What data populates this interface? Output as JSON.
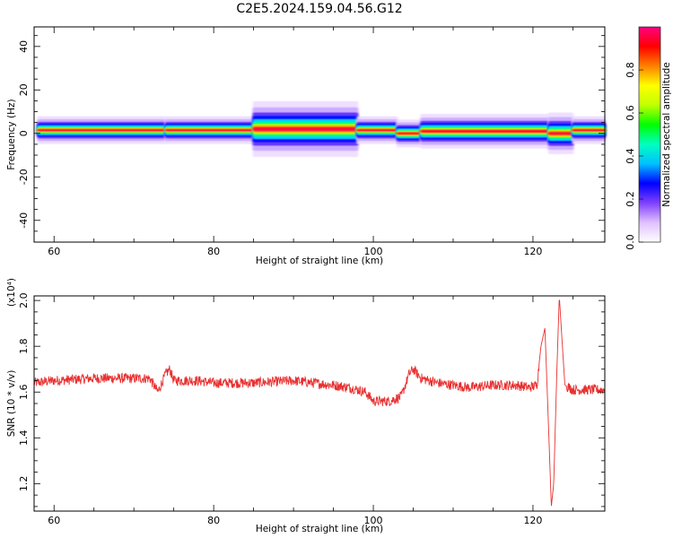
{
  "title": "C2E5.2024.159.04.56.G12",
  "chart_data": [
    {
      "type": "heatmap",
      "xlabel": "Height of straight line (km)",
      "ylabel": "Frequency (Hz)",
      "xlim": [
        57.5,
        129
      ],
      "ylim": [
        -50,
        49
      ],
      "xticks": [
        60,
        80,
        100,
        120
      ],
      "yticks": [
        -40,
        -20,
        0,
        20,
        40
      ],
      "colorbar": {
        "label": "Normalized spectral amplitude",
        "ticks": [
          "0.0",
          "0.2",
          "0.4",
          "0.6",
          "0.8"
        ],
        "range": [
          0,
          1
        ],
        "colors": [
          "#ffffff",
          "#e0c0ff",
          "#8040ff",
          "#0000ff",
          "#00c0ff",
          "#00ffc0",
          "#00ff00",
          "#c0ff00",
          "#ffff00",
          "#ff8000",
          "#ff0000",
          "#ff0080"
        ]
      },
      "band": {
        "segments": [
          {
            "x0": 58,
            "x1": 74,
            "center": 1.5,
            "halfwidth": 2
          },
          {
            "x0": 74,
            "x1": 85,
            "center": 1.5,
            "halfwidth": 2
          },
          {
            "x0": 85,
            "x1": 98,
            "center": 2,
            "halfwidth": 4
          },
          {
            "x0": 98,
            "x1": 103,
            "center": 1.5,
            "halfwidth": 2
          },
          {
            "x0": 103,
            "x1": 106,
            "center": 0,
            "halfwidth": 2
          },
          {
            "x0": 106,
            "x1": 122,
            "center": 1,
            "halfwidth": 2.5
          },
          {
            "x0": 122,
            "x1": 125,
            "center": 0,
            "halfwidth": 3
          },
          {
            "x0": 125,
            "x1": 129,
            "center": 1.5,
            "halfwidth": 2
          }
        ]
      }
    },
    {
      "type": "line",
      "xlabel": "Height of straight line (km)",
      "ylabel": "SNR (10 * v/v)",
      "yunit": "(x10⁴)",
      "xlim": [
        57.5,
        129
      ],
      "ylim": [
        1.08,
        2.02
      ],
      "xticks": [
        60,
        80,
        100,
        120
      ],
      "yticks": [
        1.2,
        1.4,
        1.6,
        1.8,
        2.0
      ],
      "ytick_labels": [
        "1.2",
        "1.4",
        "1.6",
        "1.8",
        "2.0"
      ],
      "color": "#e83030",
      "series": [
        {
          "x": [
            57.5,
            60,
            65,
            70,
            72,
            73,
            74,
            74.5,
            75,
            78,
            80,
            85,
            90,
            95,
            97,
            99,
            100,
            102,
            103.5,
            104.5,
            105,
            106,
            108,
            110,
            112,
            115,
            118,
            119.5,
            120.5,
            121,
            121.5,
            122,
            122.3,
            122.6,
            123,
            123.3,
            123.6,
            124,
            125,
            127,
            129
          ],
          "y": [
            1.64,
            1.65,
            1.66,
            1.66,
            1.66,
            1.6,
            1.68,
            1.7,
            1.65,
            1.65,
            1.64,
            1.64,
            1.65,
            1.63,
            1.62,
            1.6,
            1.56,
            1.56,
            1.58,
            1.68,
            1.7,
            1.66,
            1.64,
            1.63,
            1.62,
            1.63,
            1.63,
            1.62,
            1.63,
            1.8,
            1.88,
            1.4,
            1.1,
            1.2,
            1.7,
            2.02,
            1.85,
            1.63,
            1.61,
            1.61,
            1.61
          ]
        }
      ]
    }
  ]
}
